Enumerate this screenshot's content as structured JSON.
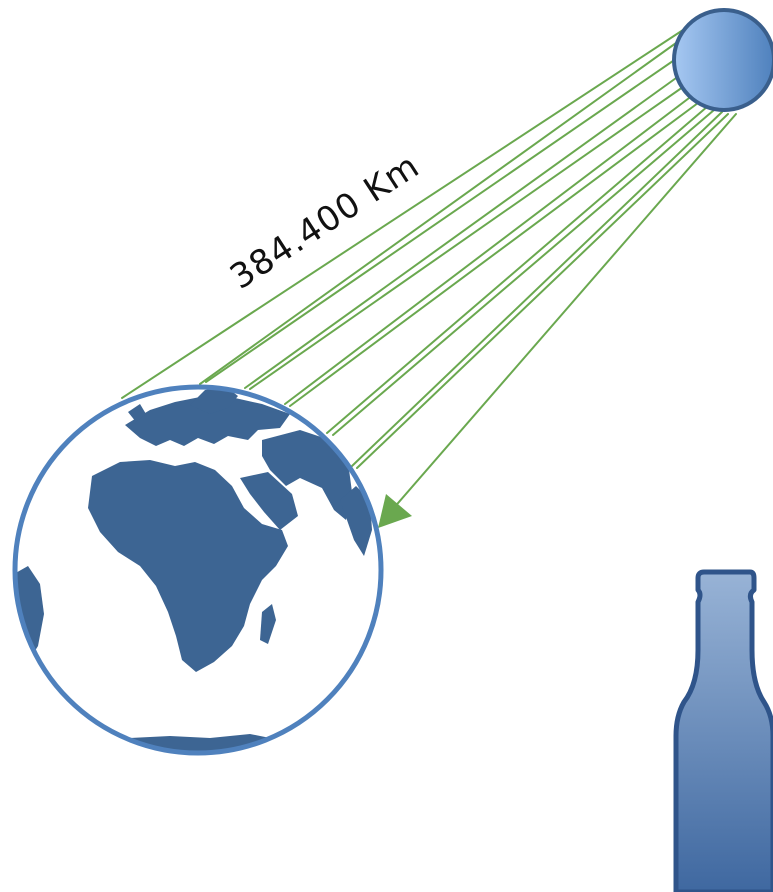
{
  "diagram": {
    "distance_label": "384.400 Km",
    "colors": {
      "beam": "#6aa84f",
      "earth_ocean": "#ffffff",
      "earth_outline": "#4f81bd",
      "land": "#3d6593",
      "moon_light": "#a6c8f2",
      "moon_dark": "#4f81bd",
      "moon_outline": "#3a5f8c",
      "bottle_light": "#98b3d6",
      "bottle_dark": "#3f68a0",
      "bottle_outline": "#2f548a"
    },
    "icons": {
      "moon": "moon-icon",
      "earth": "earth-globe-icon",
      "bottle": "bottle-icon"
    }
  }
}
